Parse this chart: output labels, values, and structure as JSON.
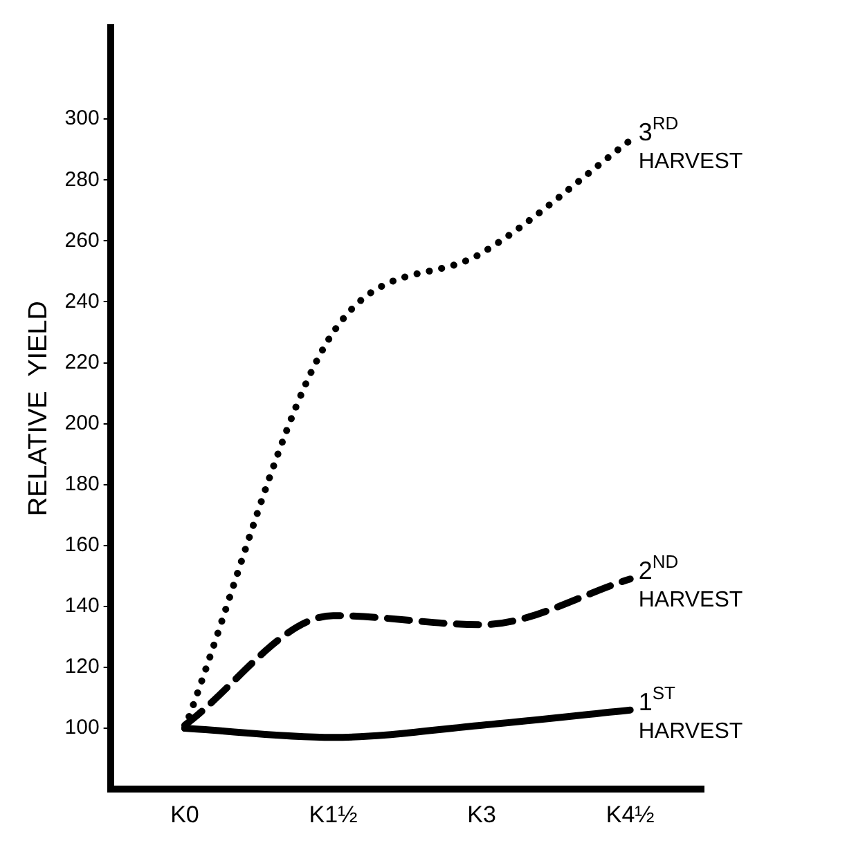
{
  "chart_data": {
    "type": "line",
    "ylabel": "RELATIVE  YIELD",
    "categories": [
      "K0",
      "K1½",
      "K3",
      "K4½"
    ],
    "ylim": [
      80,
      330
    ],
    "yticks": [
      100,
      120,
      140,
      160,
      180,
      200,
      220,
      240,
      260,
      280,
      300
    ],
    "grid": false,
    "legend": false,
    "marker": "none",
    "series": [
      {
        "name": "1$^{ST}$ HARVEST",
        "color": "#000000",
        "line_style": "solid",
        "values": [
          100,
          97,
          101,
          106
        ]
      },
      {
        "name": "2$^{ND}$ HARVEST",
        "color": "#000000",
        "line_style": "dashed",
        "values": [
          101,
          137,
          134,
          149
        ]
      },
      {
        "name": "3$^{RD}$ HARVEST",
        "color": "#000000",
        "line_style": "dotted",
        "values": [
          100,
          230,
          256,
          293
        ]
      }
    ]
  }
}
